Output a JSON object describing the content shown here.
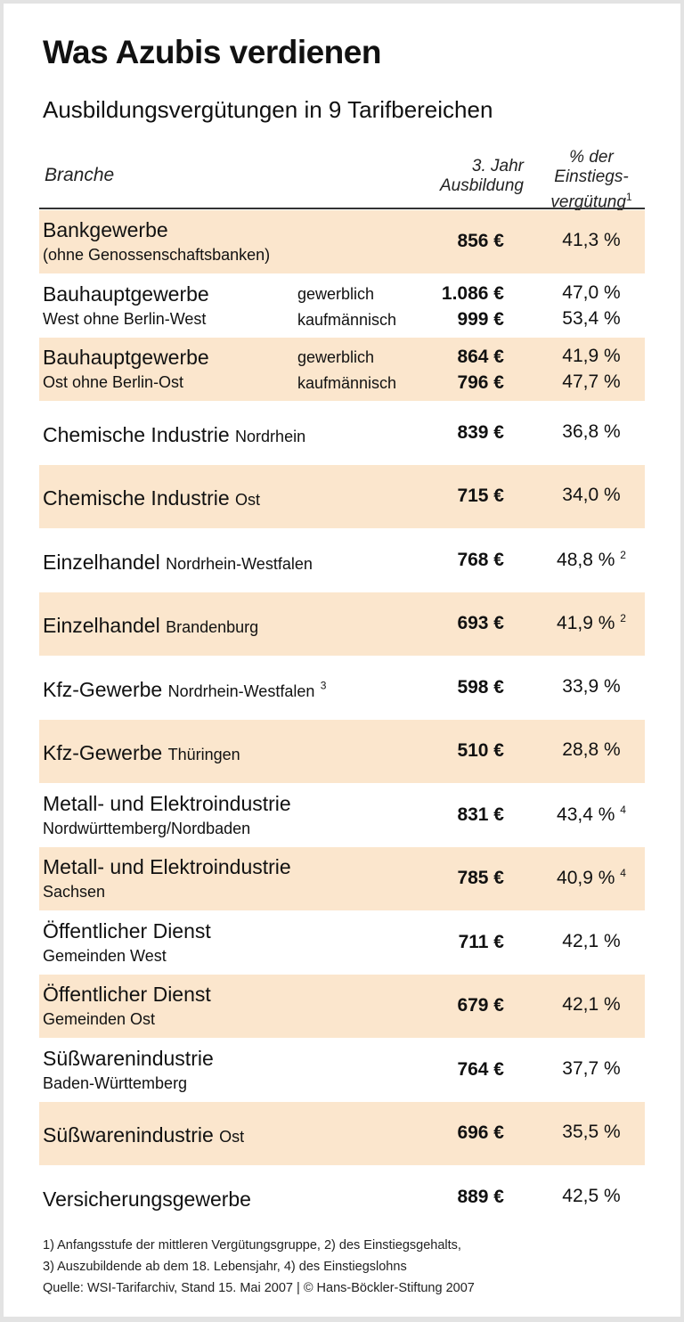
{
  "title": "Was Azubis verdienen",
  "subtitle": "Ausbildungsvergütungen in 9 Tarifbereichen",
  "colors": {
    "band": "#fbe6cd",
    "text": "#111111",
    "frame": "#e3e3e3"
  },
  "chart_data": {
    "type": "table",
    "columns": {
      "branche": "Branche",
      "amount": "3. Jahr Ausbildung",
      "amount_l1": "3. Jahr",
      "amount_l2": "Ausbildung",
      "pct_l1": "% der",
      "pct_l2": "Einstiegs-",
      "pct_l3": "vergütung",
      "pct_fn": "1"
    },
    "rows": [
      {
        "name": "Bankgewerbe",
        "suffix": "",
        "sub": "(ohne Genossenschaftsbanken)",
        "types": [],
        "amounts": [
          "856 €"
        ],
        "percents": [
          "41,3 %"
        ],
        "fn": ""
      },
      {
        "name": "Bauhauptgewerbe",
        "suffix": "",
        "sub": "West ohne Berlin-West",
        "types": [
          "gewerblich",
          "kaufmännisch"
        ],
        "amounts": [
          "1.086 €",
          "999 €"
        ],
        "percents": [
          "47,0 %",
          "53,4 %"
        ],
        "fn": ""
      },
      {
        "name": "Bauhauptgewerbe",
        "suffix": "",
        "sub": "Ost ohne Berlin-Ost",
        "types": [
          "gewerblich",
          "kaufmännisch"
        ],
        "amounts": [
          "864 €",
          "796 €"
        ],
        "percents": [
          "41,9 %",
          "47,7 %"
        ],
        "fn": ""
      },
      {
        "name": "Chemische Industrie",
        "suffix": "Nordrhein",
        "sub": "",
        "types": [],
        "amounts": [
          "839 €"
        ],
        "percents": [
          "36,8 %"
        ],
        "fn": ""
      },
      {
        "name": "Chemische Industrie",
        "suffix": "Ost",
        "sub": "",
        "types": [],
        "amounts": [
          "715 €"
        ],
        "percents": [
          "34,0 %"
        ],
        "fn": ""
      },
      {
        "name": "Einzelhandel",
        "suffix": "Nordrhein-Westfalen",
        "sub": "",
        "types": [],
        "amounts": [
          "768 €"
        ],
        "percents": [
          "48,8 %"
        ],
        "fn": "2"
      },
      {
        "name": "Einzelhandel",
        "suffix": "Brandenburg",
        "sub": "",
        "types": [],
        "amounts": [
          "693 €"
        ],
        "percents": [
          "41,9 %"
        ],
        "fn": "2"
      },
      {
        "name": "Kfz-Gewerbe",
        "suffix": "Nordrhein-Westfalen",
        "suffix_fn": "3",
        "sub": "",
        "types": [],
        "amounts": [
          "598 €"
        ],
        "percents": [
          "33,9 %"
        ],
        "fn": ""
      },
      {
        "name": "Kfz-Gewerbe",
        "suffix": "Thüringen",
        "sub": "",
        "types": [],
        "amounts": [
          "510 €"
        ],
        "percents": [
          "28,8 %"
        ],
        "fn": ""
      },
      {
        "name": "Metall- und Elektroindustrie",
        "suffix": "",
        "sub": "Nordwürttemberg/Nordbaden",
        "types": [],
        "amounts": [
          "831 €"
        ],
        "percents": [
          "43,4 %"
        ],
        "fn": "4"
      },
      {
        "name": "Metall- und Elektroindustrie",
        "suffix": "",
        "sub": "Sachsen",
        "types": [],
        "amounts": [
          "785 €"
        ],
        "percents": [
          "40,9 %"
        ],
        "fn": "4"
      },
      {
        "name": "Öffentlicher Dienst",
        "suffix": "",
        "sub": "Gemeinden West",
        "types": [],
        "amounts": [
          "711 €"
        ],
        "percents": [
          "42,1 %"
        ],
        "fn": ""
      },
      {
        "name": "Öffentlicher Dienst",
        "suffix": "",
        "sub": "Gemeinden Ost",
        "types": [],
        "amounts": [
          "679 €"
        ],
        "percents": [
          "42,1 %"
        ],
        "fn": ""
      },
      {
        "name": "Süßwarenindustrie",
        "suffix": "",
        "sub": "Baden-Württemberg",
        "types": [],
        "amounts": [
          "764 €"
        ],
        "percents": [
          "37,7 %"
        ],
        "fn": ""
      },
      {
        "name": "Süßwarenindustrie",
        "suffix": "Ost",
        "sub": "",
        "types": [],
        "amounts": [
          "696 €"
        ],
        "percents": [
          "35,5 %"
        ],
        "fn": ""
      },
      {
        "name": "Versicherungsgewerbe",
        "suffix": "",
        "sub": "",
        "types": [],
        "amounts": [
          "889 €"
        ],
        "percents": [
          "42,5 %"
        ],
        "fn": ""
      }
    ]
  },
  "footnotes": [
    "1) Anfangsstufe der mittleren Vergütungsgruppe, 2) des Einstiegsgehalts,",
    "3) Auszubildende ab dem 18. Lebensjahr, 4) des Einstiegslohns",
    "Quelle: WSI-Tarifarchiv, Stand 15. Mai 2007 | © Hans-Böckler-Stiftung 2007"
  ]
}
